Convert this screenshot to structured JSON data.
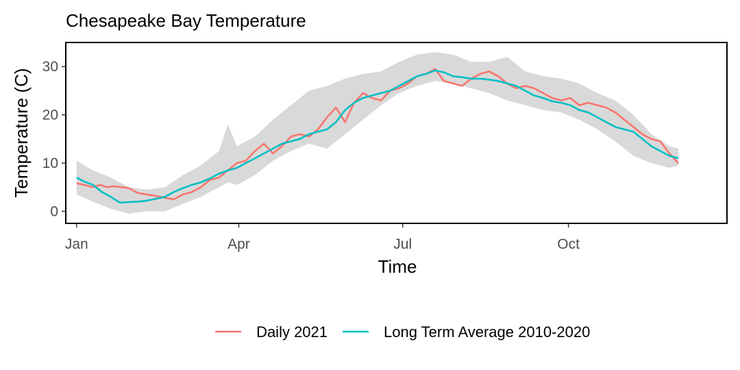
{
  "chart_data": {
    "type": "line",
    "title": "Chesapeake Bay Temperature",
    "xlabel": "Time",
    "ylabel": "Temperature (C)",
    "x_unit": "day of year",
    "xlim": [
      -5,
      362
    ],
    "ylim": [
      -2.5,
      35
    ],
    "x_ticks": [
      {
        "label": "Jan",
        "value": 1
      },
      {
        "label": "Apr",
        "value": 91
      },
      {
        "label": "Jul",
        "value": 182
      },
      {
        "label": "Oct",
        "value": 274
      }
    ],
    "y_ticks": [
      0,
      10,
      20,
      30
    ],
    "grid": false,
    "legend_position": "bottom",
    "ribbon": {
      "color": "#d9d9d9",
      "x": [
        1,
        10,
        20,
        30,
        40,
        50,
        60,
        70,
        80,
        85,
        90,
        100,
        110,
        120,
        130,
        140,
        150,
        160,
        170,
        180,
        190,
        200,
        210,
        220,
        230,
        240,
        250,
        260,
        270,
        280,
        290,
        300,
        310,
        320,
        330,
        335
      ],
      "upper": [
        10.5,
        8.5,
        7.0,
        5.0,
        4.5,
        5.0,
        7.5,
        9.5,
        12.5,
        18.0,
        13.5,
        15.5,
        19.0,
        22.0,
        25.0,
        26.0,
        27.5,
        28.5,
        29.0,
        31.0,
        32.5,
        33.0,
        32.5,
        31.0,
        31.0,
        32.0,
        29.0,
        28.0,
        27.5,
        26.5,
        24.5,
        23.0,
        20.0,
        16.0,
        13.5,
        13.0
      ],
      "lower": [
        3.5,
        2.0,
        0.5,
        -0.5,
        0.0,
        0.0,
        1.5,
        3.0,
        5.0,
        6.0,
        5.5,
        7.5,
        10.5,
        12.5,
        14.0,
        13.0,
        16.0,
        19.0,
        22.0,
        24.5,
        26.0,
        27.0,
        26.5,
        25.5,
        24.5,
        23.0,
        22.0,
        21.0,
        20.5,
        19.0,
        17.0,
        14.5,
        11.5,
        10.0,
        9.0,
        9.5
      ]
    },
    "series": [
      {
        "name": "Daily 2021",
        "color": "#F8766D",
        "x": [
          1,
          5,
          10,
          14,
          18,
          22,
          26,
          30,
          35,
          40,
          45,
          50,
          55,
          60,
          65,
          70,
          75,
          80,
          85,
          90,
          95,
          100,
          105,
          110,
          115,
          120,
          125,
          130,
          135,
          140,
          145,
          150,
          155,
          160,
          165,
          170,
          175,
          180,
          185,
          190,
          195,
          200,
          205,
          210,
          215,
          220,
          225,
          230,
          235,
          240,
          245,
          250,
          255,
          260,
          265,
          270,
          275,
          280,
          285,
          290,
          295,
          300,
          305,
          310,
          315,
          320,
          325,
          330,
          335
        ],
        "values": [
          5.8,
          5.5,
          5.0,
          5.5,
          5.0,
          5.2,
          5.0,
          4.8,
          3.8,
          3.5,
          3.2,
          2.8,
          2.5,
          3.5,
          4.0,
          5.0,
          6.5,
          7.0,
          8.5,
          10.0,
          10.5,
          12.5,
          14.0,
          12.0,
          13.5,
          15.5,
          16.0,
          15.5,
          17.0,
          19.5,
          21.5,
          18.5,
          22.5,
          24.5,
          23.5,
          23.0,
          25.0,
          25.5,
          26.5,
          28.0,
          28.5,
          29.5,
          27.0,
          26.5,
          26.0,
          27.5,
          28.5,
          29.0,
          28.0,
          26.5,
          25.5,
          26.0,
          25.5,
          24.5,
          23.5,
          23.0,
          23.5,
          22.0,
          22.5,
          22.0,
          21.5,
          20.5,
          19.0,
          17.5,
          16.0,
          15.0,
          14.5,
          12.0,
          10.0
        ]
      },
      {
        "name": "Long Term Average 2010-2020",
        "color": "#00BFC4",
        "x": [
          1,
          5,
          10,
          15,
          20,
          25,
          30,
          35,
          40,
          45,
          50,
          55,
          60,
          65,
          70,
          75,
          80,
          85,
          90,
          95,
          100,
          105,
          110,
          115,
          120,
          125,
          130,
          135,
          140,
          145,
          150,
          155,
          160,
          165,
          170,
          175,
          180,
          185,
          190,
          195,
          200,
          205,
          210,
          215,
          220,
          225,
          230,
          235,
          240,
          245,
          250,
          255,
          260,
          265,
          270,
          275,
          280,
          285,
          290,
          295,
          300,
          305,
          310,
          315,
          320,
          325,
          330,
          335
        ],
        "values": [
          7.0,
          6.2,
          5.5,
          4.0,
          3.0,
          1.8,
          1.9,
          2.0,
          2.2,
          2.6,
          3.0,
          4.0,
          4.8,
          5.5,
          6.0,
          6.8,
          7.8,
          8.5,
          9.0,
          10.0,
          11.0,
          12.0,
          13.0,
          14.0,
          14.5,
          15.0,
          16.0,
          16.5,
          17.0,
          18.5,
          21.0,
          22.5,
          23.5,
          24.0,
          24.5,
          25.0,
          26.0,
          27.0,
          28.0,
          28.5,
          29.2,
          28.8,
          28.0,
          27.8,
          27.5,
          27.5,
          27.3,
          27.0,
          26.5,
          26.0,
          25.0,
          24.0,
          23.5,
          22.8,
          22.5,
          22.0,
          21.0,
          20.5,
          19.5,
          18.5,
          17.5,
          17.0,
          16.5,
          15.0,
          13.5,
          12.5,
          11.5,
          11.0
        ]
      }
    ]
  }
}
